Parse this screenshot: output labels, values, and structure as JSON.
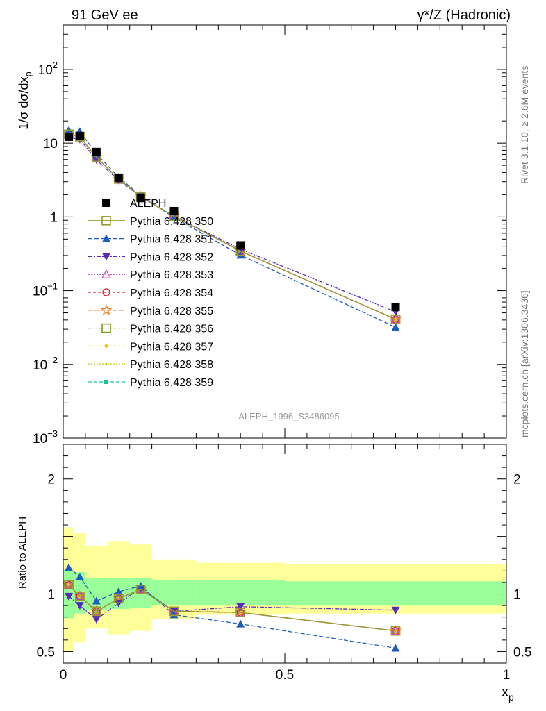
{
  "header": {
    "left": "91 GeV ee",
    "right": "γ*/Z (Hadronic)"
  },
  "side_labels": {
    "rivet": "Rivet 3.1.10, ≥ 2.6M events",
    "mcplots": "mcplots.cern.ch [arXiv:1306.3436]"
  },
  "watermark": "ALEPH_1996_S3486095",
  "chart_data": {
    "type": "line",
    "ylabel": "1/σ dσ/dx_p",
    "ratio_ylabel": "Ratio to ALEPH",
    "xlabel": "x_p",
    "x": [
      0.0125,
      0.0375,
      0.075,
      0.125,
      0.175,
      0.25,
      0.4,
      0.75
    ],
    "main_ylim": [
      0.001,
      400
    ],
    "main_yscale": "log",
    "main_yticks": [
      {
        "v": 0.001,
        "base": "10",
        "exp": "−3"
      },
      {
        "v": 0.01,
        "base": "10",
        "exp": "−2"
      },
      {
        "v": 0.1,
        "base": "10",
        "exp": "−1"
      },
      {
        "v": 1,
        "base": "1",
        "exp": ""
      },
      {
        "v": 10,
        "base": "10",
        "exp": ""
      },
      {
        "v": 100,
        "base": "10",
        "exp": "2"
      }
    ],
    "ratio_ylim": [
      0.4,
      2.3
    ],
    "ratio_yticks": [
      "0.5",
      "1",
      "2"
    ],
    "xlim": [
      0,
      1
    ],
    "xticks": [
      "0",
      "0.5",
      "1"
    ],
    "aleph": [
      12.2,
      12.5,
      7.6,
      3.4,
      1.8,
      1.2,
      0.41,
      0.06
    ],
    "bands": {
      "x_edges": [
        0,
        0.025,
        0.05,
        0.1,
        0.15,
        0.2,
        0.3,
        0.5,
        1.0
      ],
      "inner_lo": [
        0.79,
        0.83,
        0.86,
        0.87,
        0.88,
        0.9,
        0.9,
        0.9
      ],
      "inner_hi": [
        1.21,
        1.19,
        1.14,
        1.14,
        1.14,
        1.12,
        1.12,
        1.11
      ],
      "outer_lo": [
        0.5,
        0.58,
        0.7,
        0.65,
        0.68,
        0.78,
        0.82,
        0.83
      ],
      "outer_hi": [
        1.58,
        1.53,
        1.42,
        1.46,
        1.43,
        1.3,
        1.27,
        1.26
      ]
    },
    "legend_placement": "left-center",
    "series": [
      {
        "name": "ALEPH",
        "color": "#000000",
        "marker": "square-filled",
        "dash": "none",
        "ratio": [
          1,
          1,
          1,
          1,
          1,
          1,
          1,
          1
        ]
      },
      {
        "name": "Pythia 6.428 350",
        "color": "#9a9a30",
        "marker": "square-open",
        "dash": "solid",
        "ratio": [
          1.08,
          0.98,
          0.85,
          0.96,
          1.04,
          0.85,
          0.84,
          0.68
        ]
      },
      {
        "name": "Pythia 6.428 351",
        "color": "#1f5dbd",
        "marker": "triangle-up",
        "dash": "6,3",
        "ratio": [
          1.23,
          1.15,
          0.94,
          1.02,
          1.07,
          0.82,
          0.74,
          0.53
        ]
      },
      {
        "name": "Pythia 6.428 352",
        "color": "#5a2ab8",
        "marker": "triangle-down",
        "dash": "6,2,2,2",
        "ratio": [
          0.98,
          0.9,
          0.78,
          0.92,
          1.05,
          0.85,
          0.89,
          0.86
        ]
      },
      {
        "name": "Pythia 6.428 353",
        "color": "#c447c4",
        "marker": "triangle-up-open",
        "dash": "2,2",
        "ratio": [
          1.08,
          0.98,
          0.85,
          0.96,
          1.04,
          0.85,
          0.84,
          0.68
        ]
      },
      {
        "name": "Pythia 6.428 354",
        "color": "#e0182a",
        "marker": "circle-open",
        "dash": "4,3",
        "ratio": [
          1.08,
          0.98,
          0.85,
          0.96,
          1.04,
          0.85,
          0.84,
          0.68
        ]
      },
      {
        "name": "Pythia 6.428 355",
        "color": "#f07a1a",
        "marker": "star-open",
        "dash": "6,3",
        "ratio": [
          1.08,
          0.98,
          0.85,
          0.96,
          1.04,
          0.85,
          0.84,
          0.68
        ]
      },
      {
        "name": "Pythia 6.428 356",
        "color": "#7a9a1a",
        "marker": "square-open",
        "dash": "2,2",
        "ratio": [
          1.08,
          0.98,
          0.85,
          0.96,
          1.04,
          0.85,
          0.84,
          0.68
        ]
      },
      {
        "name": "Pythia 6.428 357",
        "color": "#e8c41a",
        "marker": "dot",
        "dash": "6,2,2,2",
        "ratio": [
          1.08,
          0.98,
          0.85,
          0.96,
          1.04,
          0.85,
          0.84,
          0.68
        ]
      },
      {
        "name": "Pythia 6.428 358",
        "color": "#c8d41a",
        "marker": "small-dot",
        "dash": "2,2",
        "ratio": [
          1.08,
          0.98,
          0.85,
          0.96,
          1.04,
          0.85,
          0.84,
          0.68
        ]
      },
      {
        "name": "Pythia 6.428 359",
        "color": "#1abf9a",
        "marker": "square-small",
        "dash": "5,3",
        "ratio": [
          1.08,
          0.98,
          0.85,
          0.96,
          1.04,
          0.85,
          0.84,
          0.68
        ]
      }
    ]
  }
}
